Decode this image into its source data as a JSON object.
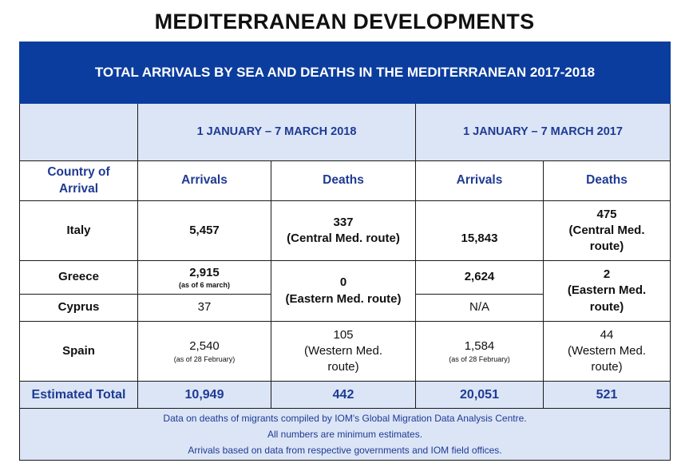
{
  "title": "MEDITERRANEAN DEVELOPMENTS",
  "table_title": "TOTAL ARRIVALS BY SEA AND DEATHS IN THE MEDITERRANEAN 2017-2018",
  "periods": [
    "1 JANUARY – 7 MARCH 2018",
    "1 JANUARY – 7 MARCH 2017"
  ],
  "headers": {
    "country": "Country of Arrival",
    "arrivals": "Arrivals",
    "deaths": "Deaths"
  },
  "rows": {
    "italy": {
      "country": "Italy",
      "arr2018": "5,457",
      "deaths2018": "337",
      "route2018": "(Central Med. route)",
      "arr2017": "15,843",
      "deaths2017": "475",
      "route2017": "(Central Med. route)"
    },
    "greece": {
      "country": "Greece",
      "arr2018": "2,915",
      "note2018": "(as of 6 march)",
      "arr2017": "2,624"
    },
    "cyprus": {
      "country": "Cyprus",
      "arr2018": "37",
      "arr2017": "N/A"
    },
    "eastern": {
      "deaths2018": "0",
      "route2018": "(Eastern Med. route)",
      "deaths2017": "2",
      "route2017": "(Eastern Med. route)"
    },
    "spain": {
      "country": "Spain",
      "arr2018": "2,540",
      "note2018": "(as of 28 February)",
      "deaths2018": "105",
      "route2018": "(Western Med. route)",
      "arr2017": "1,584",
      "note2017": "(as of 28 February)",
      "deaths2017": "44",
      "route2017": "(Western Med. route)"
    }
  },
  "total": {
    "label": "Estimated Total",
    "arr2018": "10,949",
    "deaths2018": "442",
    "arr2017": "20,051",
    "deaths2017": "521"
  },
  "footer": [
    "Data on deaths of migrants compiled by IOM's Global Migration Data Analysis Centre.",
    "All numbers are minimum estimates.",
    "Arrivals based on data from respective governments and IOM field offices."
  ]
}
